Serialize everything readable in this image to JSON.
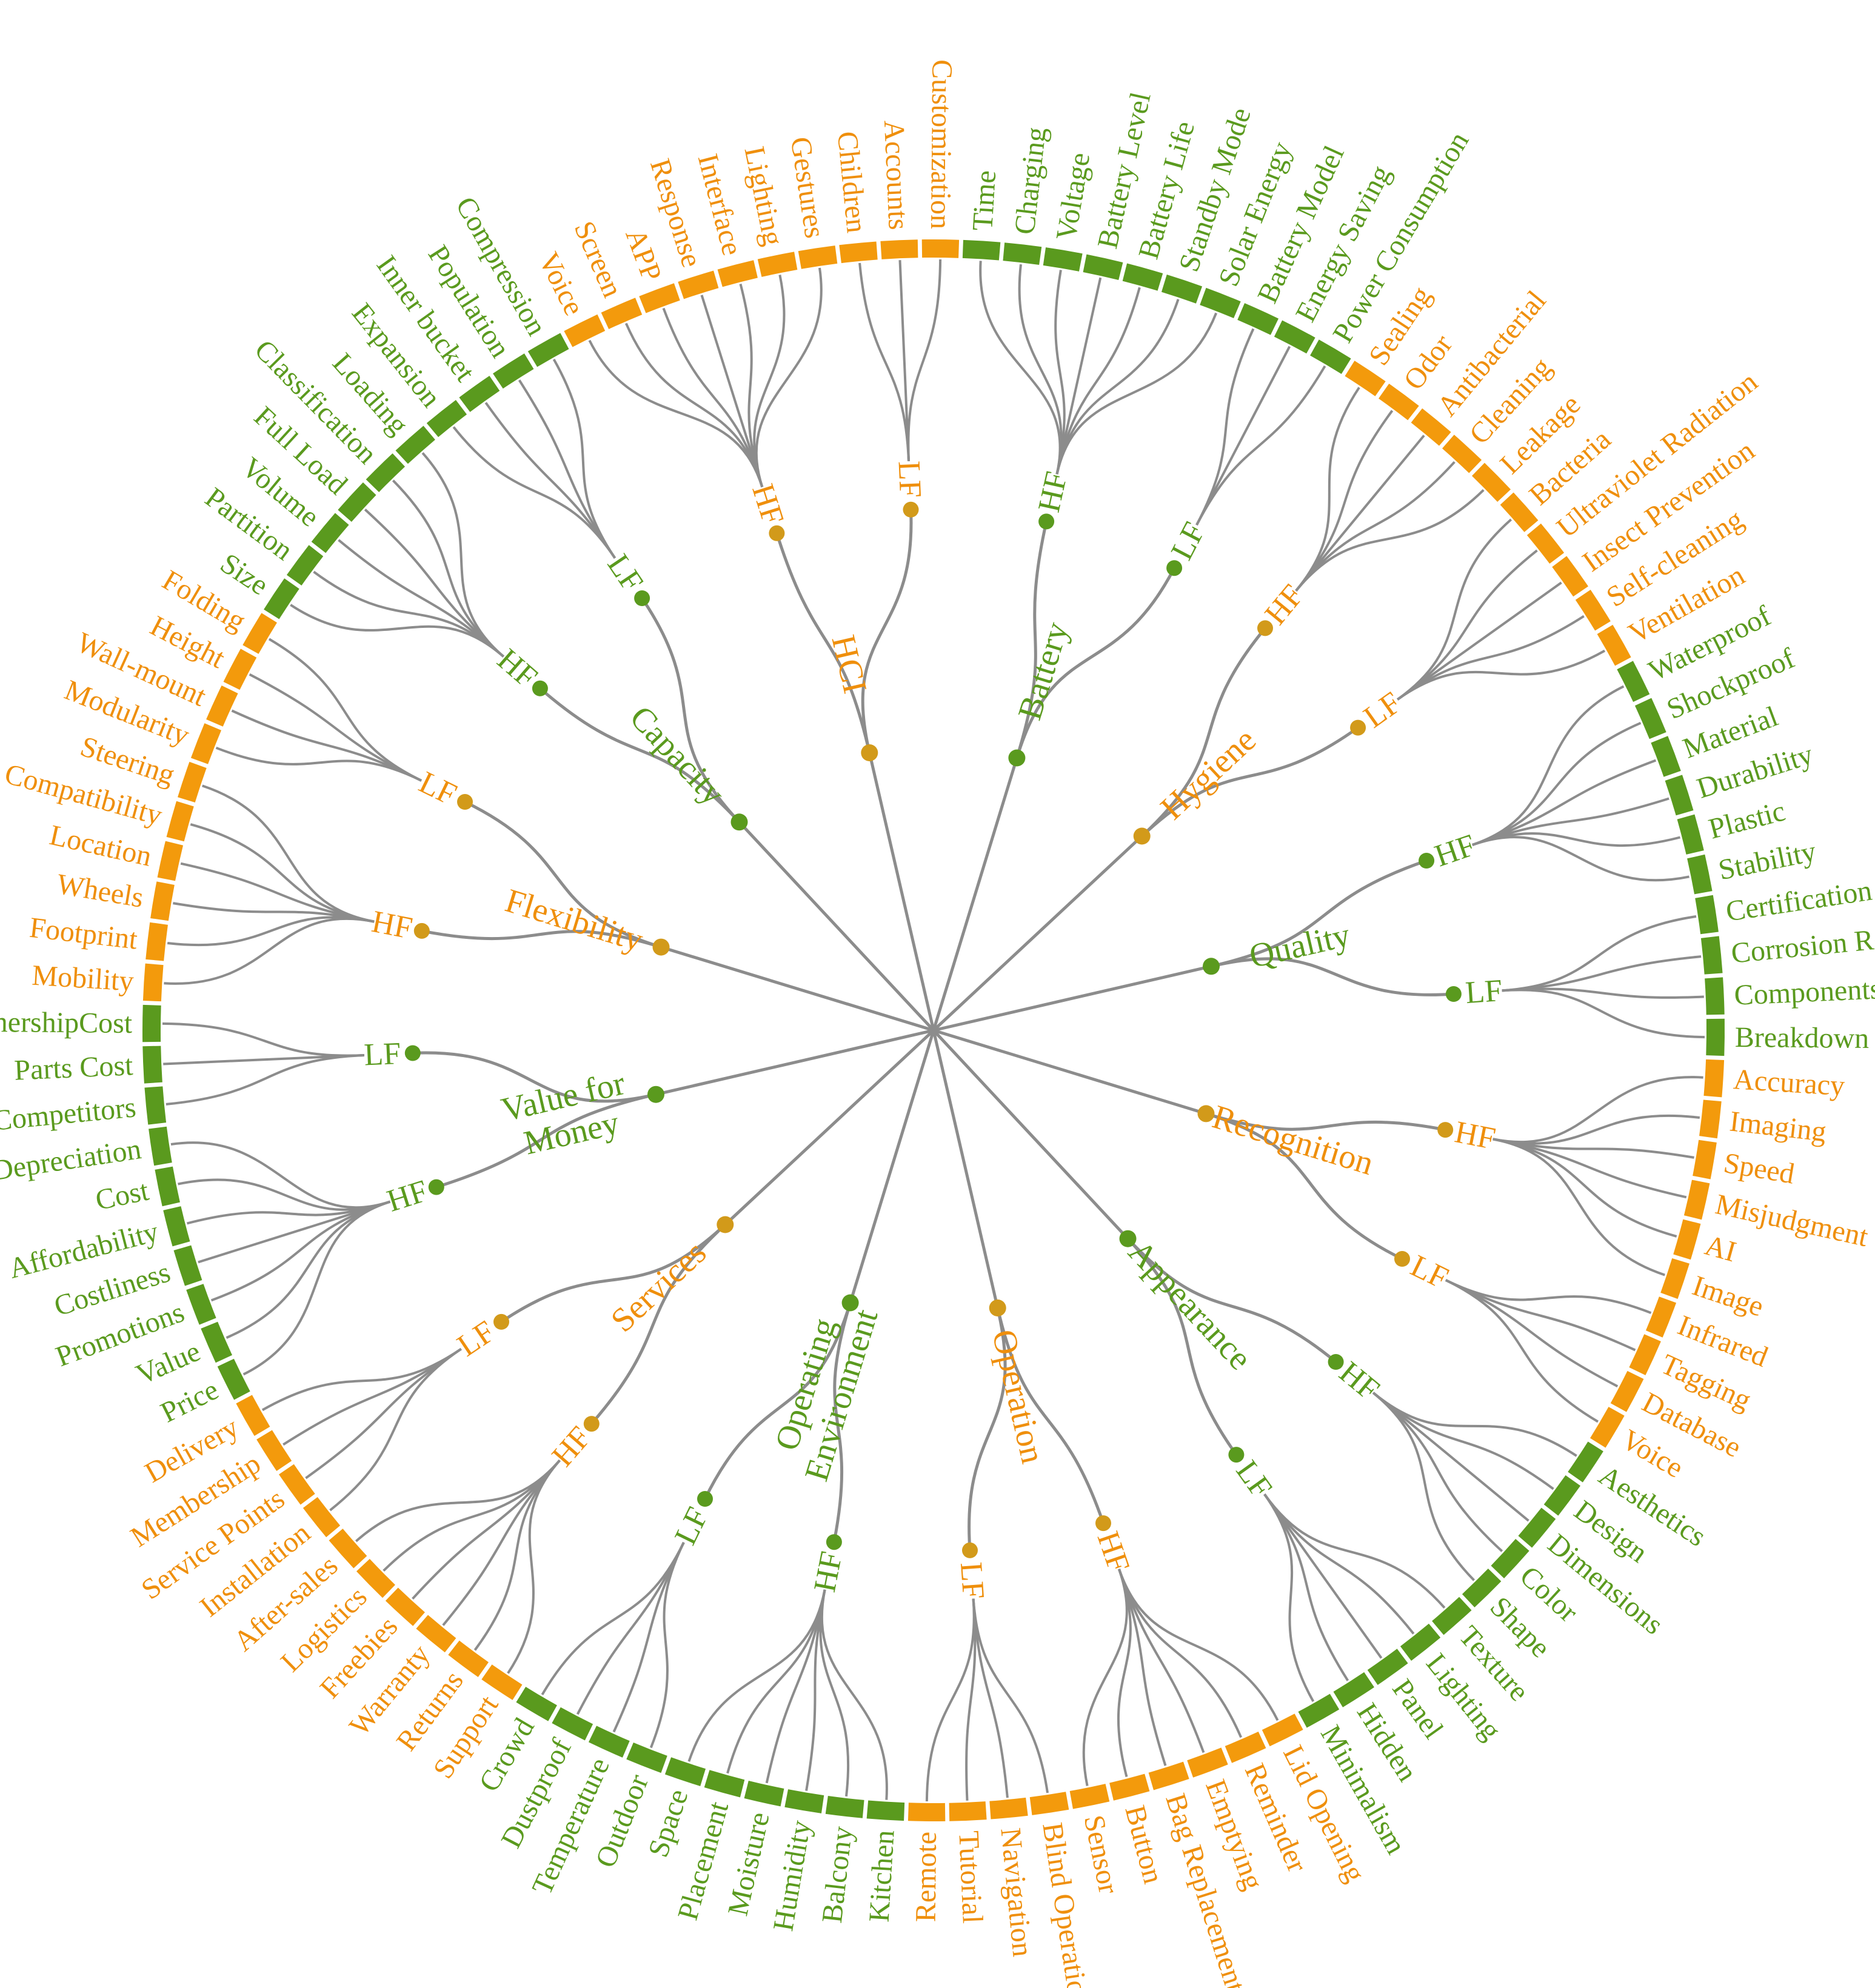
{
  "colors": {
    "green": "#5a9a1e",
    "orange": "#f39a0c",
    "orange_text": "#ef8f0c",
    "dot_orange": "#d29a1a",
    "line": "#8c8c8c"
  },
  "categories": [
    {
      "name": "Battery",
      "color": "green",
      "groups": [
        {
          "name": "HF",
          "leaves": [
            "Time",
            "Charging",
            "Voltage",
            "Battery Level",
            "Battery Life",
            "Standby Mode",
            "Solar Energy"
          ]
        },
        {
          "name": "LF",
          "leaves": [
            "Battery Model",
            "Energy Saving",
            "Power Consumption"
          ]
        }
      ]
    },
    {
      "name": "Hygiene",
      "color": "orange",
      "groups": [
        {
          "name": "HF",
          "leaves": [
            "Sealing",
            "Odor",
            "Antibacterial",
            "Cleaning",
            "Leakage"
          ]
        },
        {
          "name": "LF",
          "leaves": [
            "Bacteria",
            "Ultraviolet Radiation",
            "Insect Prevention",
            "Self-cleaning",
            "Ventilation"
          ]
        }
      ]
    },
    {
      "name": "Quality",
      "color": "green",
      "groups": [
        {
          "name": "HF",
          "leaves": [
            "Waterproof",
            "Shockproof",
            "Material",
            "Durability",
            "Plastic",
            "Stability"
          ]
        },
        {
          "name": "LF",
          "leaves": [
            "Certification",
            "Corrosion Resistance",
            "Components",
            "Breakdown"
          ]
        }
      ]
    },
    {
      "name": "Recognition",
      "color": "orange",
      "groups": [
        {
          "name": "HF",
          "leaves": [
            "Accuracy",
            "Imaging",
            "Speed",
            "Misjudgment",
            "AI",
            "Image"
          ]
        },
        {
          "name": "LF",
          "leaves": [
            "Infrared",
            "Tagging",
            "Database",
            "Voice"
          ]
        }
      ]
    },
    {
      "name": "Appearance",
      "color": "green",
      "groups": [
        {
          "name": "HF",
          "leaves": [
            "Aesthetics",
            "Design",
            "Dimensions",
            "Color",
            "Shape"
          ]
        },
        {
          "name": "LF",
          "leaves": [
            "Texture",
            "Lighting",
            "Panel",
            "Hidden",
            "Minimalism"
          ]
        }
      ]
    },
    {
      "name": "Operation",
      "color": "orange",
      "groups": [
        {
          "name": "HF",
          "leaves": [
            "Lid Opening",
            "Reminder",
            "Emptying",
            "Bag Replacement",
            "Button",
            "Sensor"
          ]
        },
        {
          "name": "LF",
          "leaves": [
            "Blind Operation",
            "Navigation",
            "Tutorial",
            "Remote"
          ]
        }
      ]
    },
    {
      "name": "Operating Environment",
      "color": "green",
      "groups": [
        {
          "name": "HF",
          "leaves": [
            "Kitchen",
            "Balcony",
            "Humidity",
            "Moisture",
            "Placement",
            "Space"
          ]
        },
        {
          "name": "LF",
          "leaves": [
            "Outdoor",
            "Temperature",
            "Dustproof",
            "Crowd"
          ]
        }
      ]
    },
    {
      "name": "Services",
      "color": "orange",
      "groups": [
        {
          "name": "HF",
          "leaves": [
            "Support",
            "Returns",
            "Warranty",
            "Freebies",
            "Logistics",
            "After-sales"
          ]
        },
        {
          "name": "LF",
          "leaves": [
            "Installation",
            "Service Points",
            "Membership",
            "Delivery"
          ]
        }
      ]
    },
    {
      "name": "Value for Money",
      "color": "green",
      "groups": [
        {
          "name": "HF",
          "leaves": [
            "Price",
            "Value",
            "Promotions",
            "Costliness",
            "Affordability",
            "Cost",
            "Depreciation"
          ]
        },
        {
          "name": "LF",
          "leaves": [
            "Competitors",
            "Parts Cost",
            "OwnershipCost"
          ]
        }
      ]
    },
    {
      "name": "Flexibility",
      "color": "orange",
      "groups": [
        {
          "name": "HF",
          "leaves": [
            "Mobility",
            "Footprint",
            "Wheels",
            "Location",
            "Compatibility",
            "Steering"
          ]
        },
        {
          "name": "LF",
          "leaves": [
            "Modularity",
            "Wall-mount",
            "Height",
            "Folding"
          ]
        }
      ]
    },
    {
      "name": "Capacity",
      "color": "green",
      "groups": [
        {
          "name": "HF",
          "leaves": [
            "Size",
            "Partition",
            "Volume",
            "Full Load",
            "Classification",
            "Loading"
          ]
        },
        {
          "name": "LF",
          "leaves": [
            "Expansion",
            "Inner bucket",
            "Population",
            "Compression"
          ]
        }
      ]
    },
    {
      "name": "HCI",
      "color": "orange",
      "groups": [
        {
          "name": "HF",
          "leaves": [
            "Voice",
            "Screen",
            "APP",
            "Response",
            "Interface",
            "Lighting",
            "Gestures"
          ]
        },
        {
          "name": "LF",
          "leaves": [
            "Children",
            "Accounts",
            "Customization"
          ]
        }
      ]
    }
  ]
}
